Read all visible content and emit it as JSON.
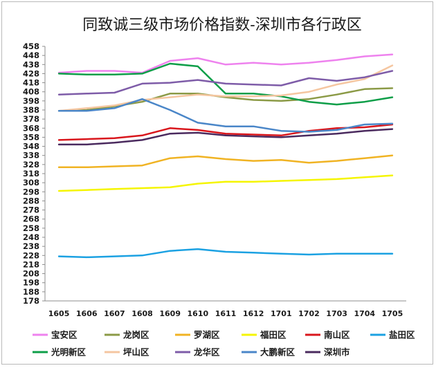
{
  "chart_data": {
    "type": "line",
    "title": "同致诚三级市场价格指数-深圳市各行政区",
    "xlabel": "",
    "ylabel": "",
    "ylim": [
      178,
      458
    ],
    "yticks": [
      178,
      188,
      198,
      208,
      218,
      228,
      238,
      248,
      258,
      268,
      278,
      288,
      298,
      308,
      318,
      328,
      338,
      348,
      358,
      368,
      378,
      388,
      398,
      408,
      418,
      428,
      438,
      448,
      458
    ],
    "grid": false,
    "legend_position": "bottom",
    "x": [
      "1605",
      "1606",
      "1607",
      "1608",
      "1609",
      "1610",
      "1611",
      "1612",
      "1701",
      "1702",
      "1703",
      "1704",
      "1705"
    ],
    "series": [
      {
        "name": "宝安区",
        "color": "#ee82ee",
        "values": [
          429,
          431,
          431,
          429,
          442,
          445,
          438,
          440,
          438,
          440,
          443,
          447,
          449
        ]
      },
      {
        "name": "龙岗区",
        "color": "#8b9a46",
        "values": [
          387,
          388,
          392,
          397,
          406,
          406,
          402,
          399,
          398,
          400,
          405,
          411,
          412
        ]
      },
      {
        "name": "罗湖区",
        "color": "#f0b323",
        "values": [
          325,
          325,
          326,
          327,
          335,
          337,
          334,
          332,
          333,
          330,
          332,
          335,
          338
        ]
      },
      {
        "name": "福田区",
        "color": "#f5f500",
        "values": [
          299,
          300,
          301,
          302,
          303,
          307,
          309,
          309,
          310,
          311,
          312,
          314,
          316
        ]
      },
      {
        "name": "南山区",
        "color": "#d9161c",
        "values": [
          355,
          356,
          357,
          360,
          368,
          366,
          362,
          361,
          360,
          365,
          368,
          369,
          372
        ]
      },
      {
        "name": "盐田区",
        "color": "#1ba1e2",
        "values": [
          227,
          226,
          227,
          228,
          233,
          235,
          232,
          231,
          230,
          229,
          230,
          230,
          230
        ]
      },
      {
        "name": "光明新区",
        "color": "#0d9e48",
        "values": [
          428,
          427,
          427,
          428,
          439,
          436,
          406,
          406,
          403,
          397,
          394,
          397,
          402
        ]
      },
      {
        "name": "坪山区",
        "color": "#f5c6a0",
        "values": [
          387,
          390,
          393,
          399,
          402,
          405,
          403,
          403,
          404,
          408,
          416,
          422,
          437
        ]
      },
      {
        "name": "龙华区",
        "color": "#7e5ca8",
        "values": [
          405,
          406,
          407,
          417,
          418,
          421,
          417,
          416,
          415,
          423,
          420,
          424,
          431
        ]
      },
      {
        "name": "大鹏新区",
        "color": "#4a86c8",
        "values": [
          387,
          387,
          390,
          400,
          388,
          374,
          370,
          370,
          365,
          364,
          366,
          372,
          373
        ]
      },
      {
        "name": "深圳市",
        "color": "#4a2a5e",
        "values": [
          350,
          350,
          352,
          355,
          362,
          363,
          360,
          359,
          358,
          360,
          362,
          365,
          367
        ]
      }
    ]
  }
}
